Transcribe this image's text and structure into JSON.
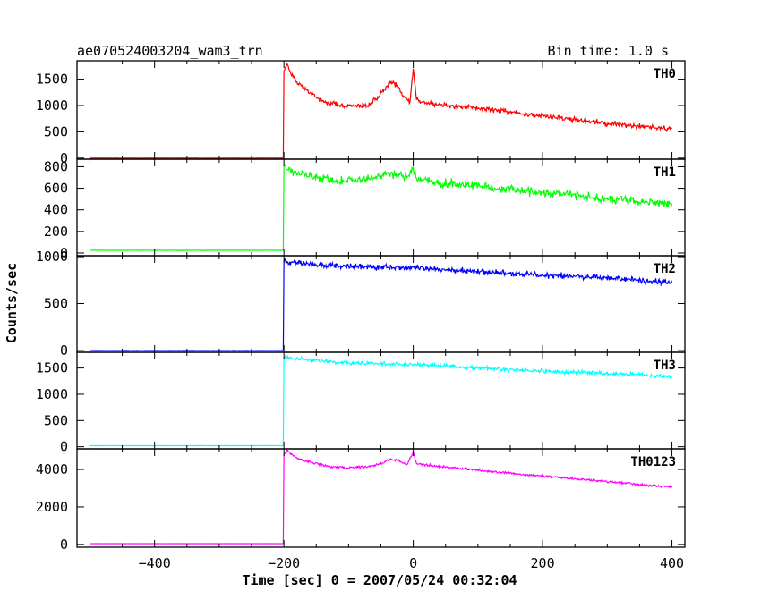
{
  "chart_data": {
    "type": "line",
    "title": "ae070524003204_wam3_trn",
    "bin_time_label": "Bin time: 1.0 s",
    "xlabel": "Time [sec] 0 = 2007/05/24 00:32:04",
    "ylabel": "Counts/sec",
    "xlim": [
      -520,
      420
    ],
    "x_ticks": [
      -400,
      -200,
      0,
      200,
      400
    ],
    "x_tick_labels": [
      "−400",
      "−200",
      "0",
      "200",
      "400"
    ],
    "bin_time_s": 1.0,
    "panels": [
      {
        "name": "TH0",
        "color": "#ff0000",
        "ylim": [
          -20,
          1850
        ],
        "y_ticks": [
          0,
          500,
          1000,
          1500
        ],
        "y_tick_labels": [
          "0",
          "500",
          "1000",
          "1500"
        ],
        "pre_level": 0,
        "onset_time": -200,
        "anchors": [
          [
            -200,
            1650
          ],
          [
            -195,
            1800
          ],
          [
            -190,
            1600
          ],
          [
            -180,
            1450
          ],
          [
            -170,
            1350
          ],
          [
            -150,
            1150
          ],
          [
            -130,
            1050
          ],
          [
            -110,
            1000
          ],
          [
            -90,
            980
          ],
          [
            -70,
            1000
          ],
          [
            -55,
            1150
          ],
          [
            -45,
            1300
          ],
          [
            -35,
            1450
          ],
          [
            -25,
            1380
          ],
          [
            -15,
            1180
          ],
          [
            -5,
            1050
          ],
          [
            0,
            1700
          ],
          [
            5,
            1150
          ],
          [
            10,
            1080
          ],
          [
            30,
            1030
          ],
          [
            60,
            1000
          ],
          [
            100,
            950
          ],
          [
            150,
            880
          ],
          [
            200,
            800
          ],
          [
            250,
            720
          ],
          [
            300,
            660
          ],
          [
            350,
            610
          ],
          [
            400,
            550
          ]
        ],
        "noise": 55
      },
      {
        "name": "TH1",
        "color": "#00ff00",
        "ylim": [
          -25,
          870
        ],
        "y_ticks": [
          0,
          200,
          400,
          600,
          800
        ],
        "y_tick_labels": [
          "0",
          "200",
          "400",
          "600",
          "800"
        ],
        "pre_level": 25,
        "onset_time": -200,
        "anchors": [
          [
            -200,
            820
          ],
          [
            -190,
            760
          ],
          [
            -170,
            730
          ],
          [
            -150,
            700
          ],
          [
            -120,
            670
          ],
          [
            -90,
            670
          ],
          [
            -60,
            700
          ],
          [
            -40,
            750
          ],
          [
            -25,
            720
          ],
          [
            -10,
            700
          ],
          [
            0,
            790
          ],
          [
            5,
            690
          ],
          [
            30,
            660
          ],
          [
            60,
            640
          ],
          [
            100,
            620
          ],
          [
            150,
            590
          ],
          [
            200,
            560
          ],
          [
            250,
            530
          ],
          [
            300,
            500
          ],
          [
            350,
            480
          ],
          [
            400,
            455
          ]
        ],
        "noise": 45
      },
      {
        "name": "TH2",
        "color": "#0000ff",
        "ylim": [
          -20,
          1010
        ],
        "y_ticks": [
          0,
          500,
          1000
        ],
        "y_tick_labels": [
          "0",
          "500",
          "1000"
        ],
        "pre_level": 0,
        "onset_time": -200,
        "anchors": [
          [
            -200,
            950
          ],
          [
            -150,
            910
          ],
          [
            -100,
            900
          ],
          [
            -50,
            890
          ],
          [
            0,
            880
          ],
          [
            50,
            860
          ],
          [
            100,
            840
          ],
          [
            150,
            820
          ],
          [
            200,
            800
          ],
          [
            250,
            790
          ],
          [
            300,
            770
          ],
          [
            350,
            750
          ],
          [
            400,
            720
          ]
        ],
        "noise": 35
      },
      {
        "name": "TH3",
        "color": "#00ffff",
        "ylim": [
          -40,
          1800
        ],
        "y_ticks": [
          0,
          500,
          1000,
          1500
        ],
        "y_tick_labels": [
          "0",
          "500",
          "1000",
          "1500"
        ],
        "pre_level": 20,
        "onset_time": -200,
        "anchors": [
          [
            -200,
            1700
          ],
          [
            -150,
            1640
          ],
          [
            -100,
            1600
          ],
          [
            -50,
            1580
          ],
          [
            0,
            1560
          ],
          [
            50,
            1540
          ],
          [
            100,
            1500
          ],
          [
            150,
            1470
          ],
          [
            200,
            1440
          ],
          [
            250,
            1420
          ],
          [
            300,
            1400
          ],
          [
            350,
            1370
          ],
          [
            400,
            1330
          ]
        ],
        "noise": 45
      },
      {
        "name": "TH0123",
        "color": "#ff00ff",
        "ylim": [
          -150,
          5100
        ],
        "y_ticks": [
          0,
          2000,
          4000
        ],
        "y_tick_labels": [
          "0",
          "2000",
          "4000"
        ],
        "pre_level": 40,
        "onset_time": -200,
        "anchors": [
          [
            -200,
            4800
          ],
          [
            -195,
            5000
          ],
          [
            -180,
            4600
          ],
          [
            -160,
            4400
          ],
          [
            -130,
            4150
          ],
          [
            -100,
            4100
          ],
          [
            -70,
            4150
          ],
          [
            -50,
            4300
          ],
          [
            -35,
            4550
          ],
          [
            -25,
            4500
          ],
          [
            -10,
            4250
          ],
          [
            0,
            4900
          ],
          [
            5,
            4300
          ],
          [
            30,
            4200
          ],
          [
            60,
            4100
          ],
          [
            100,
            3950
          ],
          [
            150,
            3800
          ],
          [
            200,
            3650
          ],
          [
            250,
            3500
          ],
          [
            300,
            3350
          ],
          [
            350,
            3200
          ],
          [
            400,
            3050
          ]
        ],
        "noise": 70
      }
    ]
  }
}
